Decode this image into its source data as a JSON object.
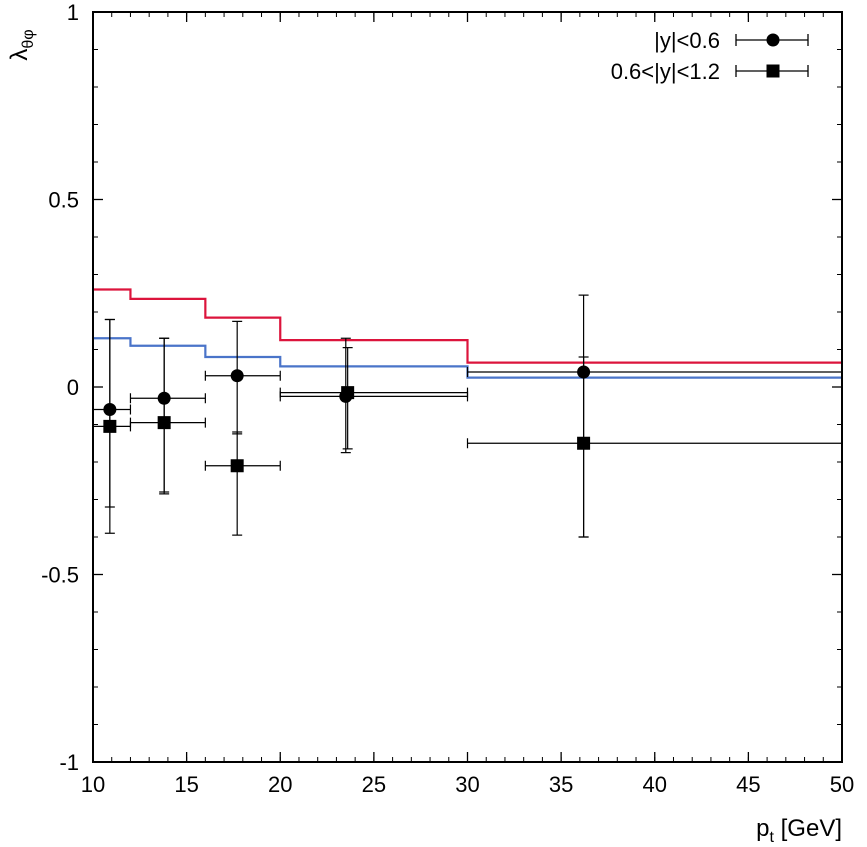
{
  "chart_data": {
    "type": "scatter",
    "title": "",
    "xlabel_main": "p",
    "xlabel_sub": "t",
    "xlabel_unit": " [GeV]",
    "ylabel_main": "λ",
    "ylabel_sub": "θφ",
    "xlim": [
      10,
      50
    ],
    "ylim": [
      -1,
      1
    ],
    "x_ticks": [
      10,
      15,
      20,
      25,
      30,
      35,
      40,
      45,
      50
    ],
    "x_tick_labels": [
      "10",
      "15",
      "20",
      "25",
      "30",
      "35",
      "40",
      "45",
      "50"
    ],
    "y_ticks": [
      -1,
      -0.5,
      0,
      0.5,
      1
    ],
    "y_tick_labels": [
      "-1",
      "-0.5",
      "0",
      "0.5",
      "1"
    ],
    "y_minor_step": 0.1,
    "x_minor_step": 1,
    "grid": false,
    "legend_position": "top-right",
    "series": [
      {
        "name": "|y|<0.6",
        "marker": "circle",
        "color": "#000000",
        "points": [
          {
            "x": 10.9,
            "y": -0.06,
            "xlo": 10,
            "xhi": 12,
            "ylo": -0.39,
            "yhi": 0.18
          },
          {
            "x": 13.8,
            "y": -0.03,
            "xlo": 12,
            "xhi": 16,
            "ylo": -0.28,
            "yhi": 0.13
          },
          {
            "x": 17.7,
            "y": 0.03,
            "xlo": 16,
            "xhi": 20,
            "ylo": -0.125,
            "yhi": 0.175
          },
          {
            "x": 23.5,
            "y": -0.025,
            "xlo": 20,
            "xhi": 30,
            "ylo": -0.175,
            "yhi": 0.13
          },
          {
            "x": 36.2,
            "y": 0.04,
            "xlo": 30,
            "xhi": 50,
            "ylo": -0.4,
            "yhi": 0.245
          }
        ]
      },
      {
        "name": "0.6<|y|<1.2",
        "marker": "square",
        "color": "#000000",
        "points": [
          {
            "x": 10.9,
            "y": -0.105,
            "xlo": 10,
            "xhi": 12,
            "ylo": -0.32,
            "yhi": 0.18
          },
          {
            "x": 13.8,
            "y": -0.095,
            "xlo": 12,
            "xhi": 16,
            "ylo": -0.285,
            "yhi": 0.13
          },
          {
            "x": 17.7,
            "y": -0.21,
            "xlo": 16,
            "xhi": 20,
            "ylo": -0.395,
            "yhi": -0.12
          },
          {
            "x": 23.6,
            "y": -0.015,
            "xlo": 20,
            "xhi": 30,
            "ylo": -0.165,
            "yhi": 0.105
          },
          {
            "x": 36.2,
            "y": -0.15,
            "xlo": 30,
            "xhi": 50,
            "ylo": -0.4,
            "yhi": 0.08
          }
        ]
      }
    ],
    "step_lines": [
      {
        "name": "model-red",
        "color": "#dc143c",
        "edges": [
          10,
          12,
          16,
          20,
          30,
          50
        ],
        "values": [
          0.26,
          0.235,
          0.185,
          0.125,
          0.065
        ]
      },
      {
        "name": "model-blue",
        "color": "#4a74c9",
        "edges": [
          10,
          12,
          16,
          20,
          30,
          50
        ],
        "values": [
          0.13,
          0.11,
          0.08,
          0.055,
          0.025
        ]
      }
    ]
  }
}
